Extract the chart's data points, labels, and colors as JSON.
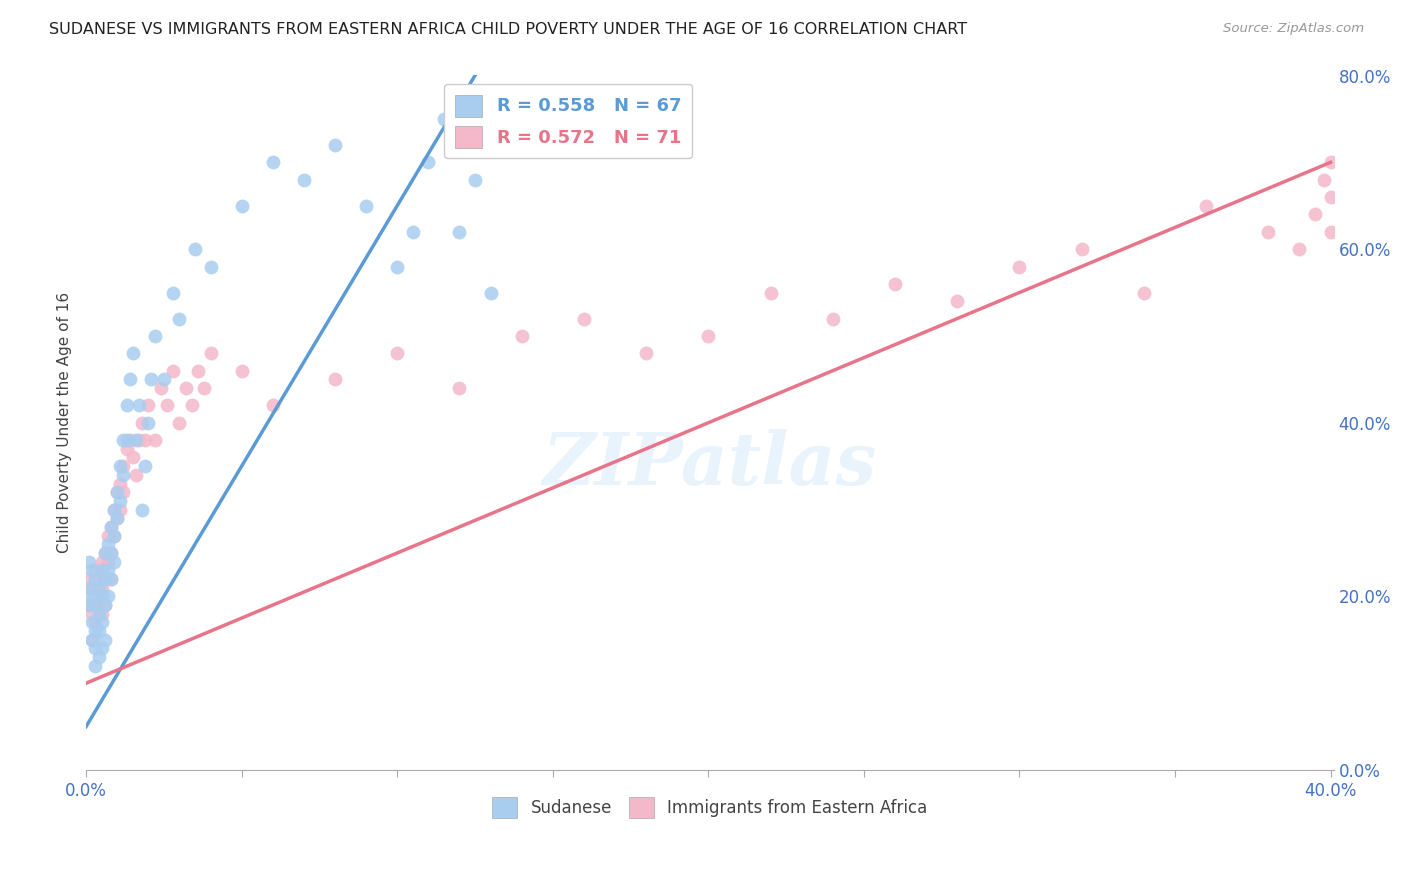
{
  "title": "SUDANESE VS IMMIGRANTS FROM EASTERN AFRICA CHILD POVERTY UNDER THE AGE OF 16 CORRELATION CHART",
  "source": "Source: ZipAtlas.com",
  "ylabel": "Child Poverty Under the Age of 16",
  "legend_label1": "Sudanese",
  "legend_label2": "Immigrants from Eastern Africa",
  "R1": "0.558",
  "N1": "67",
  "R2": "0.572",
  "N2": "71",
  "color1": "#A8CDEF",
  "color2": "#F4B8CB",
  "line_color1": "#5B9BD5",
  "line_color2": "#E8748A",
  "watermark": "ZIPatlas",
  "background_color": "#FFFFFF",
  "blue_line_x0": 0.0,
  "blue_line_y0": 0.05,
  "blue_line_x1": 0.125,
  "blue_line_y1": 0.8,
  "pink_line_x0": 0.0,
  "pink_line_y0": 0.1,
  "pink_line_x1": 0.4,
  "pink_line_y1": 0.7,
  "sudanese_x": [
    0.001,
    0.001,
    0.001,
    0.002,
    0.002,
    0.002,
    0.002,
    0.003,
    0.003,
    0.003,
    0.003,
    0.003,
    0.004,
    0.004,
    0.004,
    0.004,
    0.005,
    0.005,
    0.005,
    0.005,
    0.006,
    0.006,
    0.006,
    0.006,
    0.007,
    0.007,
    0.007,
    0.008,
    0.008,
    0.008,
    0.009,
    0.009,
    0.009,
    0.01,
    0.01,
    0.011,
    0.011,
    0.012,
    0.012,
    0.013,
    0.013,
    0.014,
    0.015,
    0.016,
    0.017,
    0.018,
    0.019,
    0.02,
    0.021,
    0.022,
    0.025,
    0.028,
    0.03,
    0.035,
    0.04,
    0.05,
    0.06,
    0.07,
    0.08,
    0.09,
    0.1,
    0.105,
    0.11,
    0.115,
    0.12,
    0.125,
    0.13
  ],
  "sudanese_y": [
    0.24,
    0.21,
    0.19,
    0.23,
    0.2,
    0.17,
    0.15,
    0.22,
    0.19,
    0.16,
    0.14,
    0.12,
    0.21,
    0.18,
    0.16,
    0.13,
    0.23,
    0.2,
    0.17,
    0.14,
    0.25,
    0.22,
    0.19,
    0.15,
    0.26,
    0.23,
    0.2,
    0.28,
    0.25,
    0.22,
    0.3,
    0.27,
    0.24,
    0.32,
    0.29,
    0.35,
    0.31,
    0.38,
    0.34,
    0.42,
    0.38,
    0.45,
    0.48,
    0.38,
    0.42,
    0.3,
    0.35,
    0.4,
    0.45,
    0.5,
    0.45,
    0.55,
    0.52,
    0.6,
    0.58,
    0.65,
    0.7,
    0.68,
    0.72,
    0.65,
    0.58,
    0.62,
    0.7,
    0.75,
    0.62,
    0.68,
    0.55
  ],
  "eastern_x": [
    0.001,
    0.001,
    0.002,
    0.002,
    0.002,
    0.003,
    0.003,
    0.003,
    0.004,
    0.004,
    0.005,
    0.005,
    0.005,
    0.006,
    0.006,
    0.006,
    0.007,
    0.007,
    0.008,
    0.008,
    0.008,
    0.009,
    0.009,
    0.01,
    0.01,
    0.011,
    0.011,
    0.012,
    0.012,
    0.013,
    0.014,
    0.015,
    0.016,
    0.017,
    0.018,
    0.019,
    0.02,
    0.022,
    0.024,
    0.026,
    0.028,
    0.03,
    0.032,
    0.034,
    0.036,
    0.038,
    0.04,
    0.05,
    0.06,
    0.08,
    0.1,
    0.12,
    0.14,
    0.16,
    0.18,
    0.2,
    0.22,
    0.24,
    0.26,
    0.28,
    0.3,
    0.32,
    0.34,
    0.36,
    0.38,
    0.39,
    0.395,
    0.398,
    0.4,
    0.4,
    0.4
  ],
  "eastern_y": [
    0.22,
    0.19,
    0.21,
    0.18,
    0.15,
    0.23,
    0.2,
    0.17,
    0.22,
    0.19,
    0.24,
    0.21,
    0.18,
    0.25,
    0.22,
    0.19,
    0.27,
    0.24,
    0.28,
    0.25,
    0.22,
    0.3,
    0.27,
    0.32,
    0.29,
    0.33,
    0.3,
    0.35,
    0.32,
    0.37,
    0.38,
    0.36,
    0.34,
    0.38,
    0.4,
    0.38,
    0.42,
    0.38,
    0.44,
    0.42,
    0.46,
    0.4,
    0.44,
    0.42,
    0.46,
    0.44,
    0.48,
    0.46,
    0.42,
    0.45,
    0.48,
    0.44,
    0.5,
    0.52,
    0.48,
    0.5,
    0.55,
    0.52,
    0.56,
    0.54,
    0.58,
    0.6,
    0.55,
    0.65,
    0.62,
    0.6,
    0.64,
    0.68,
    0.7,
    0.62,
    0.66
  ],
  "xlim": [
    0,
    0.401
  ],
  "ylim": [
    0,
    0.801
  ],
  "yticks": [
    0.0,
    0.2,
    0.4,
    0.6,
    0.8
  ],
  "xtick_positions": [
    0.0,
    0.05,
    0.1,
    0.15,
    0.2,
    0.25,
    0.3,
    0.35,
    0.4
  ],
  "grid_color": "#CCCCCC",
  "grid_style": "--"
}
